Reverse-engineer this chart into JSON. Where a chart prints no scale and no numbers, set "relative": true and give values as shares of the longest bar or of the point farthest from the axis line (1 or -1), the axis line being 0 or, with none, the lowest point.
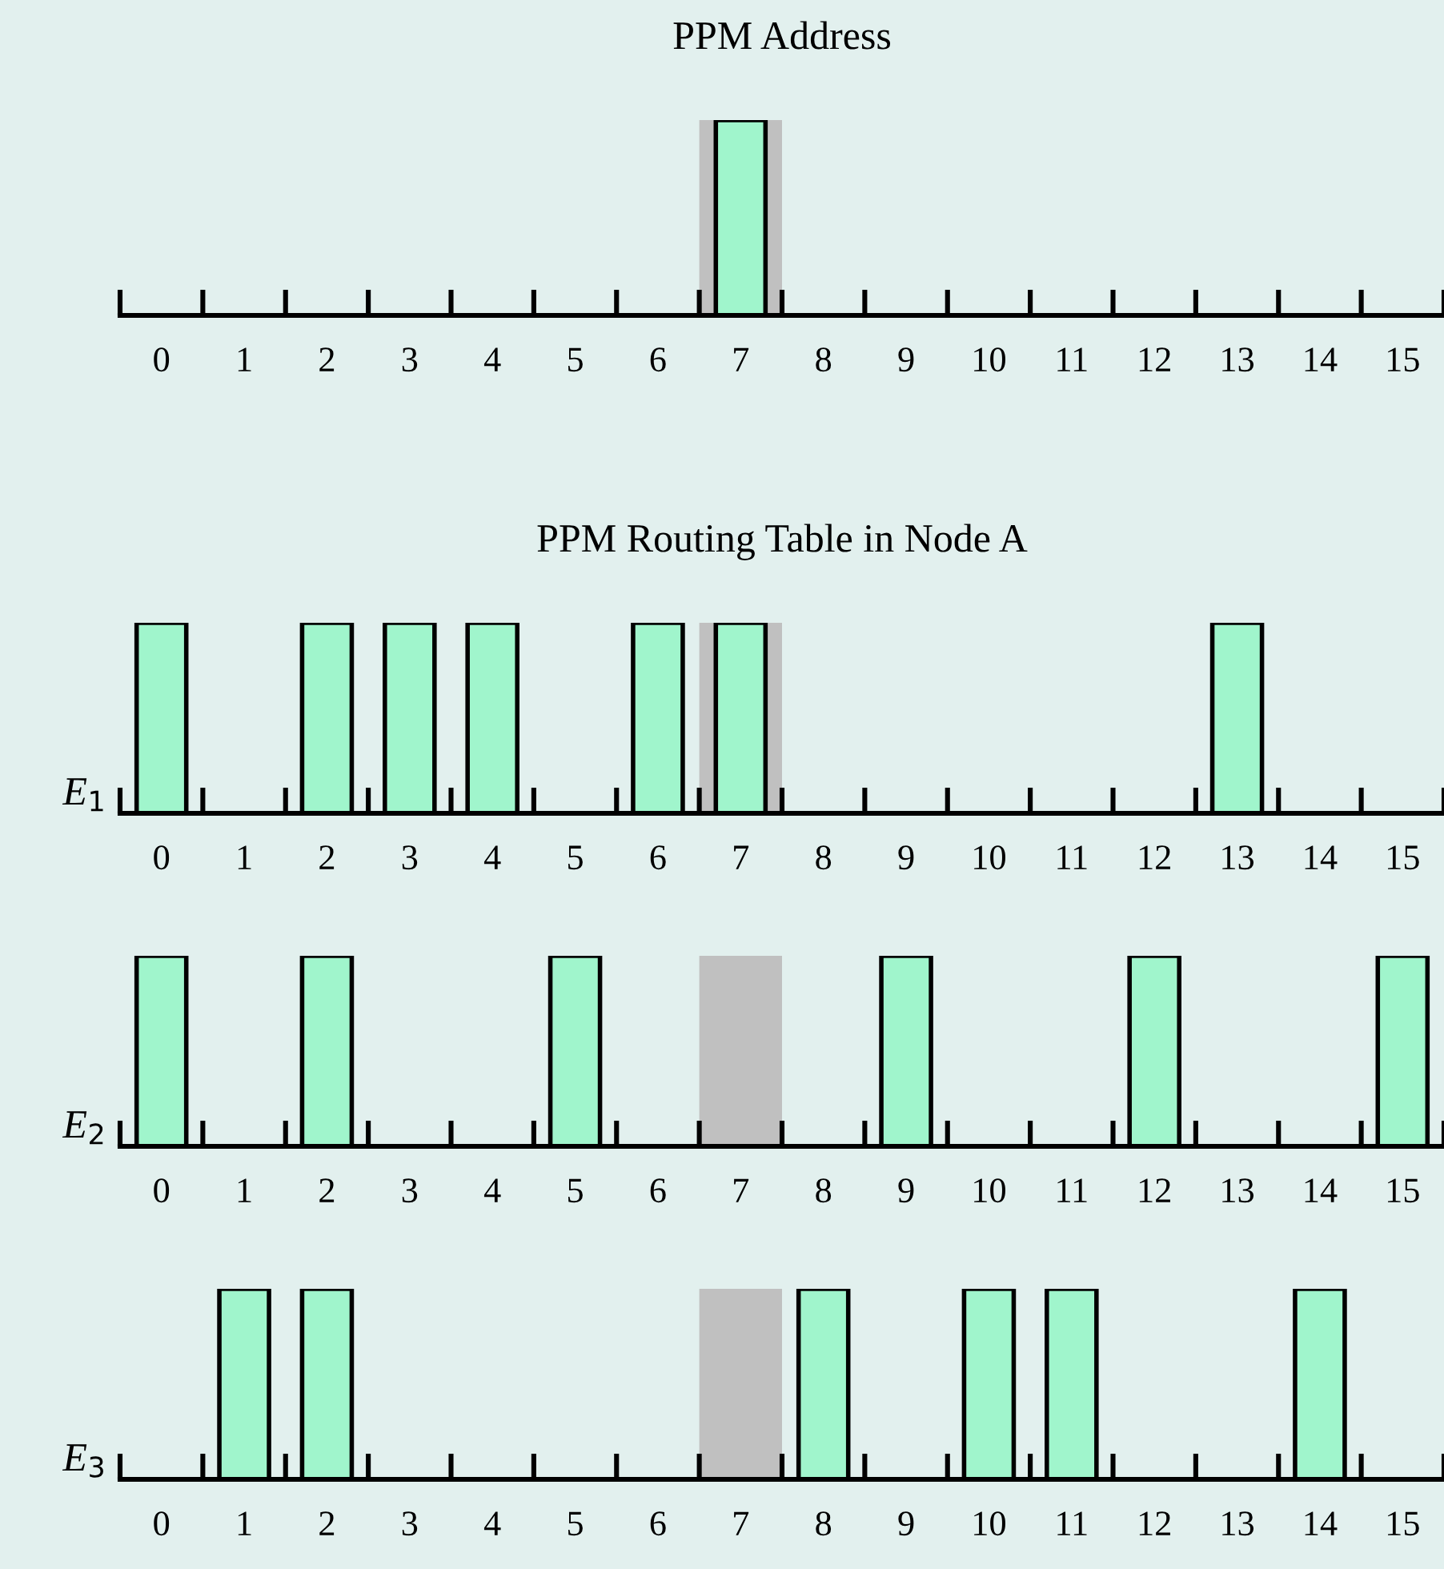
{
  "chart_data": [
    {
      "type": "bar",
      "title": "PPM Address",
      "relative": true,
      "categories": [
        "0",
        "1",
        "2",
        "3",
        "4",
        "5",
        "6",
        "7",
        "8",
        "9",
        "10",
        "11",
        "12",
        "13",
        "14",
        "15"
      ],
      "series": [
        {
          "color": "#a0f5cc",
          "values": [
            null,
            null,
            null,
            null,
            null,
            null,
            null,
            1,
            null,
            null,
            null,
            null,
            null,
            null,
            null,
            null
          ]
        }
      ],
      "bands": [
        {
          "axis": "x",
          "from": "7",
          "to": "7",
          "color": "#c0c0c0"
        }
      ]
    },
    {
      "type": "bar",
      "title": "PPM Routing Table in Node A",
      "ylabel": "E$_{1}$",
      "relative": true,
      "categories": [
        "0",
        "1",
        "2",
        "3",
        "4",
        "5",
        "6",
        "7",
        "8",
        "9",
        "10",
        "11",
        "12",
        "13",
        "14",
        "15"
      ],
      "series": [
        {
          "color": "#a0f5cc",
          "values": [
            1,
            null,
            1,
            1,
            1,
            null,
            1,
            1,
            null,
            null,
            null,
            null,
            null,
            1,
            null,
            null
          ]
        }
      ],
      "bands": [
        {
          "axis": "x",
          "from": "7",
          "to": "7",
          "color": "#c0c0c0"
        }
      ]
    },
    {
      "type": "bar",
      "ylabel": "E$_{2}$",
      "relative": true,
      "categories": [
        "0",
        "1",
        "2",
        "3",
        "4",
        "5",
        "6",
        "7",
        "8",
        "9",
        "10",
        "11",
        "12",
        "13",
        "14",
        "15"
      ],
      "series": [
        {
          "color": "#a0f5cc",
          "values": [
            1,
            null,
            1,
            null,
            null,
            1,
            null,
            null,
            null,
            1,
            null,
            null,
            1,
            null,
            null,
            1
          ]
        }
      ],
      "bands": [
        {
          "axis": "x",
          "from": "7",
          "to": "7",
          "color": "#c0c0c0"
        }
      ]
    },
    {
      "type": "bar",
      "ylabel": "E$_{3}$",
      "relative": true,
      "categories": [
        "0",
        "1",
        "2",
        "3",
        "4",
        "5",
        "6",
        "7",
        "8",
        "9",
        "10",
        "11",
        "12",
        "13",
        "14",
        "15"
      ],
      "series": [
        {
          "color": "#a0f5cc",
          "values": [
            null,
            1,
            1,
            null,
            null,
            null,
            null,
            null,
            1,
            null,
            1,
            1,
            null,
            null,
            1,
            null
          ]
        }
      ],
      "bands": [
        {
          "axis": "x",
          "from": "7",
          "to": "7",
          "color": "#c0c0c0"
        }
      ]
    }
  ]
}
